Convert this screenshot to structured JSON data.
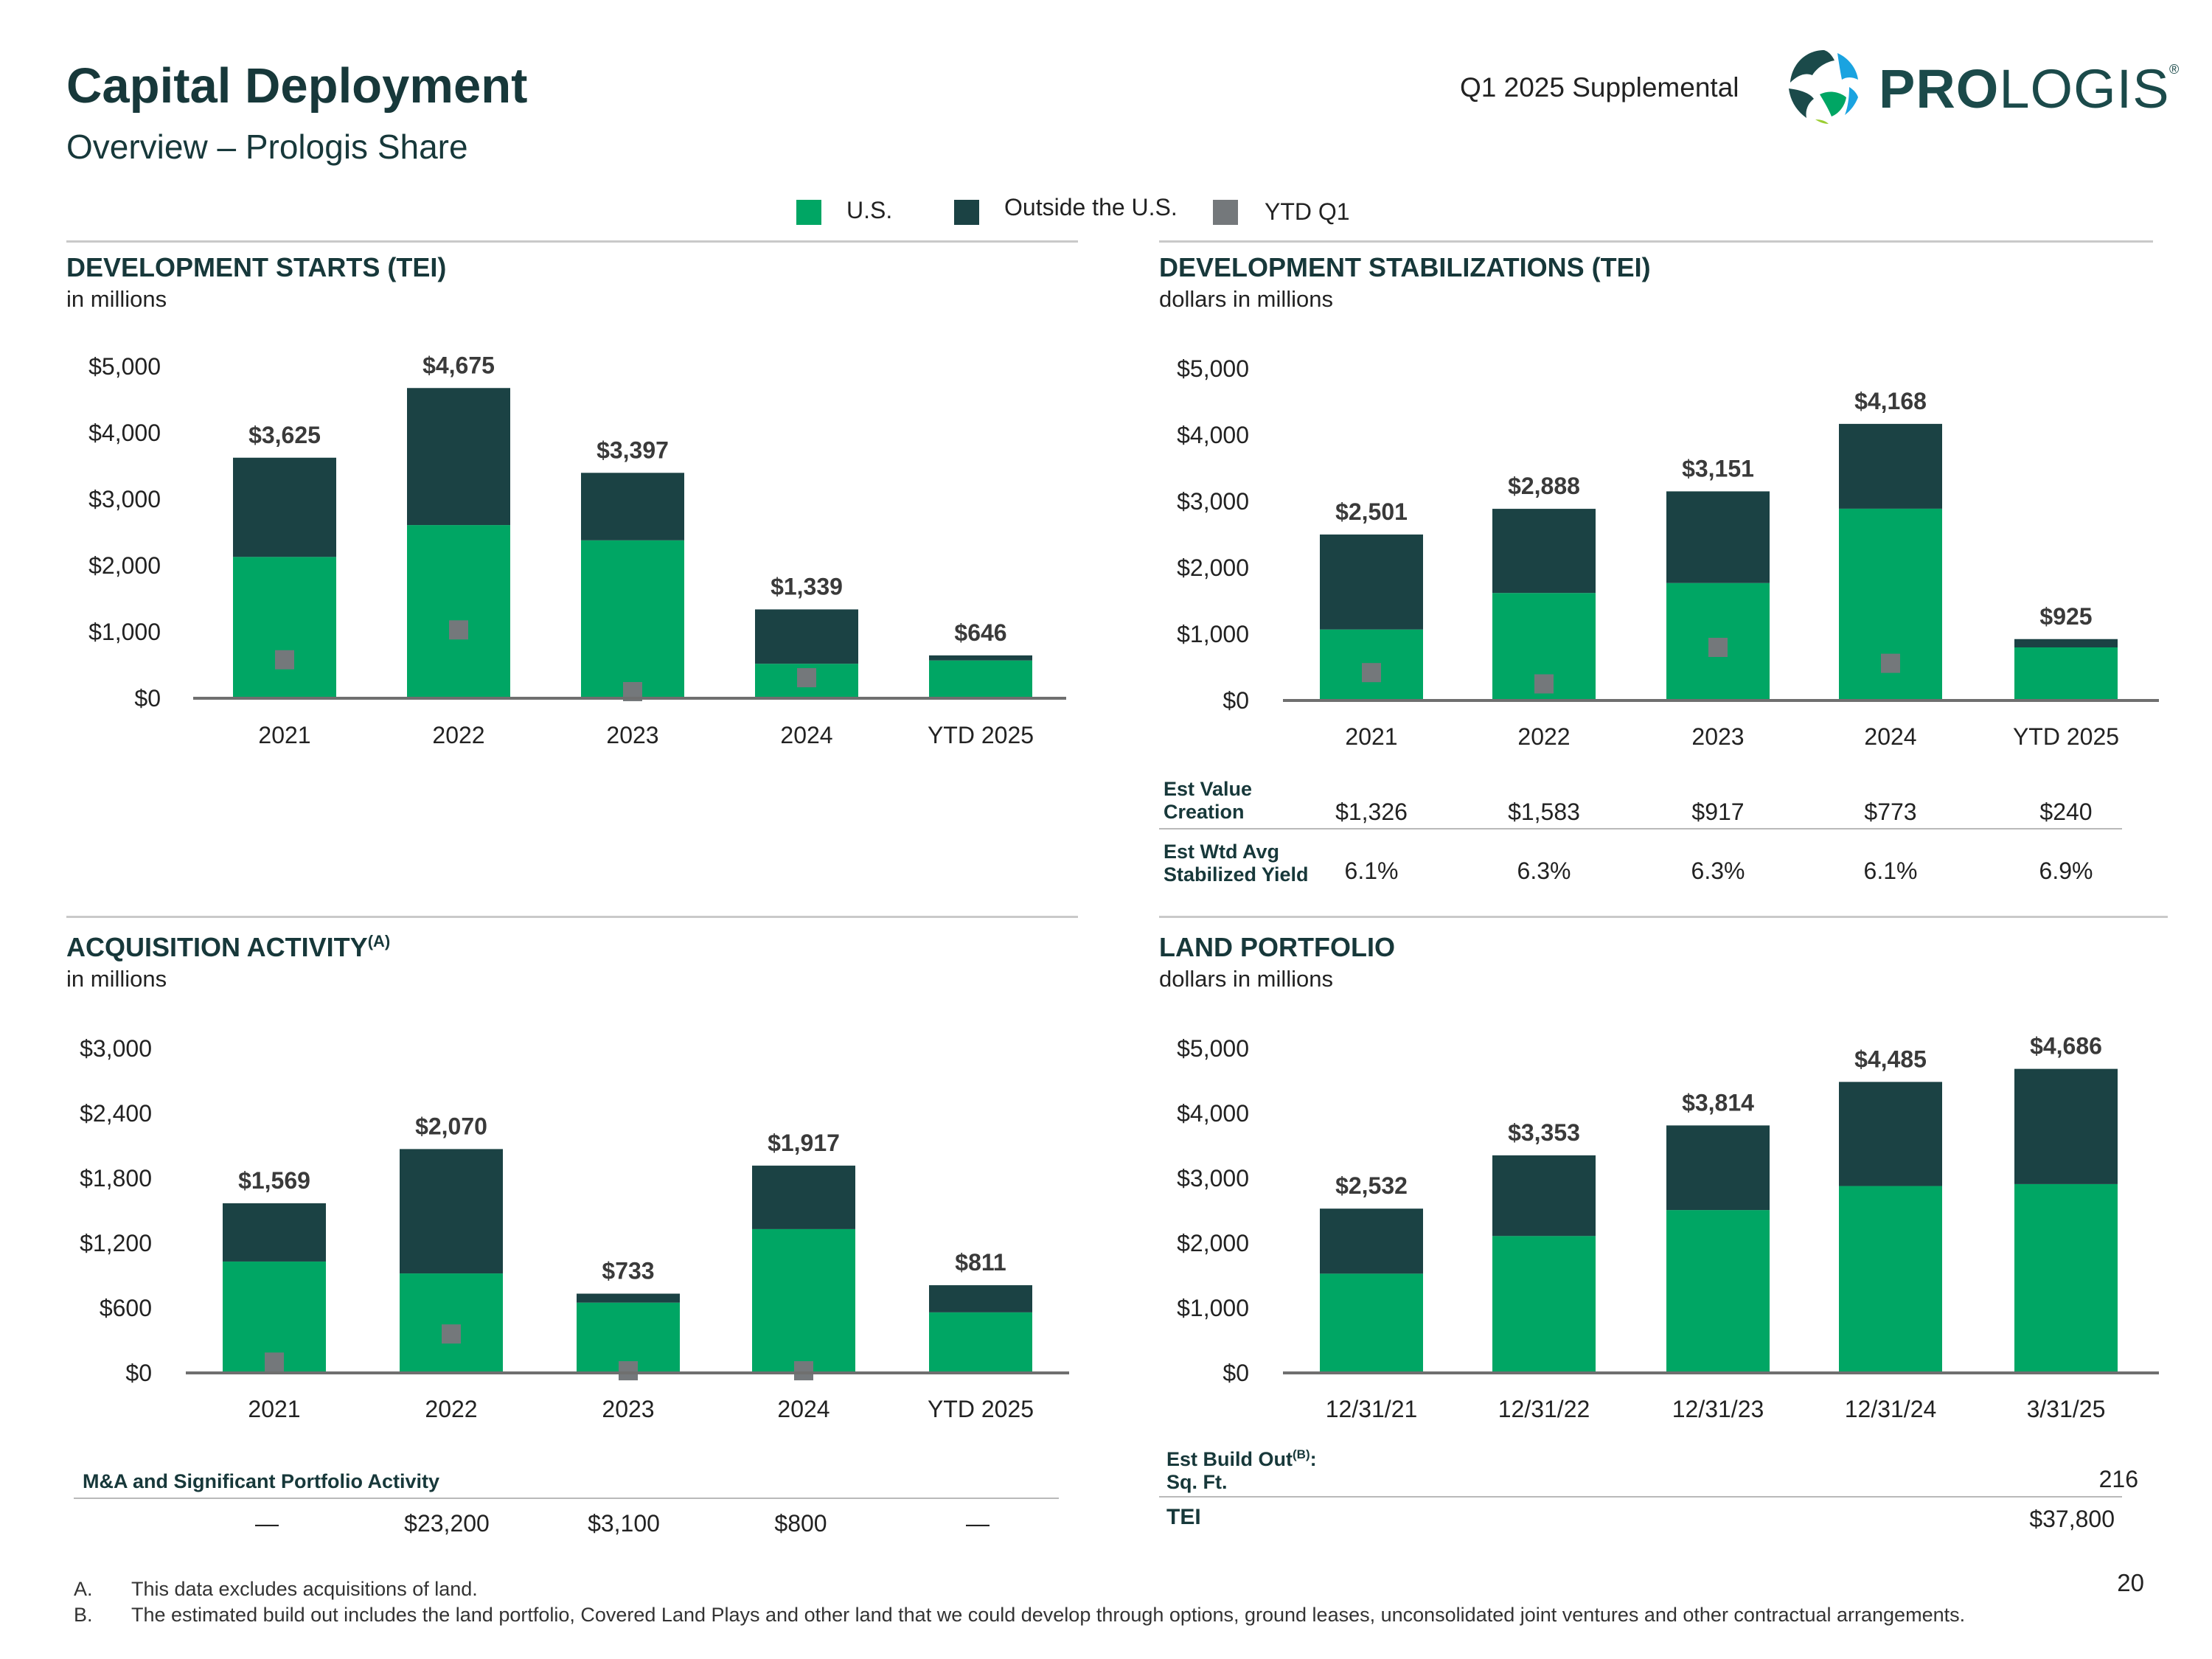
{
  "header": {
    "title": "Capital Deployment",
    "subtitle": "Overview – Prologis Share",
    "supplemental": "Q1 2025 Supplemental",
    "logo_bold": "PRO",
    "logo_regular": "LOGIS",
    "logo_mark": "®"
  },
  "legend": {
    "us": "U.S.",
    "outside": "Outside the U.S.",
    "ytd": "YTD Q1"
  },
  "colors": {
    "us": "#00a664",
    "outside": "#1b4244",
    "ytd": "#74787b",
    "axis": "#6f6f6f"
  },
  "sections": {
    "dev_starts": {
      "title": "DEVELOPMENT STARTS (TEI)",
      "subtitle": "in millions"
    },
    "dev_stab": {
      "title": "DEVELOPMENT STABILIZATIONS (TEI)",
      "subtitle": "dollars in millions"
    },
    "acq": {
      "title": "ACQUISITION ACTIVITY",
      "title_sup": "(A)",
      "subtitle": "in millions"
    },
    "land": {
      "title": "LAND PORTFOLIO",
      "subtitle": "dollars in millions"
    }
  },
  "chart_data": [
    {
      "id": "dev_starts",
      "type": "bar",
      "stacked": true,
      "categories": [
        "2021",
        "2022",
        "2023",
        "2024",
        "YTD 2025"
      ],
      "series": [
        {
          "name": "U.S.",
          "values": [
            2130,
            2610,
            2380,
            520,
            570
          ]
        },
        {
          "name": "Outside the U.S.",
          "values": [
            1495,
            2065,
            1017,
            819,
            76
          ]
        }
      ],
      "markers": {
        "name": "YTD Q1",
        "values": [
          580,
          1030,
          100,
          310,
          null
        ]
      },
      "totals": [
        "$3,625",
        "$4,675",
        "$3,397",
        "$1,339",
        "$646"
      ],
      "yticks": [
        0,
        1000,
        2000,
        3000,
        4000,
        5000
      ],
      "ytick_labels": [
        "$0",
        "$1,000",
        "$2,000",
        "$3,000",
        "$4,000",
        "$5,000"
      ],
      "ylim": [
        0,
        5000
      ]
    },
    {
      "id": "dev_stab",
      "type": "bar",
      "stacked": true,
      "categories": [
        "2021",
        "2022",
        "2023",
        "2024",
        "YTD 2025"
      ],
      "series": [
        {
          "name": "U.S.",
          "values": [
            1070,
            1620,
            1770,
            2890,
            800
          ]
        },
        {
          "name": "Outside the U.S.",
          "values": [
            1431,
            1268,
            1381,
            1278,
            125
          ]
        }
      ],
      "markers": {
        "name": "YTD Q1",
        "values": [
          420,
          250,
          800,
          560,
          null
        ]
      },
      "totals": [
        "$2,501",
        "$2,888",
        "$3,151",
        "$4,168",
        "$925"
      ],
      "yticks": [
        0,
        1000,
        2000,
        3000,
        4000,
        5000
      ],
      "ytick_labels": [
        "$0",
        "$1,000",
        "$2,000",
        "$3,000",
        "$4,000",
        "$5,000"
      ],
      "ylim": [
        0,
        5000
      ]
    },
    {
      "id": "acq",
      "type": "bar",
      "stacked": true,
      "categories": [
        "2021",
        "2022",
        "2023",
        "2024",
        "YTD 2025"
      ],
      "series": [
        {
          "name": "U.S.",
          "values": [
            1030,
            920,
            650,
            1330,
            560
          ]
        },
        {
          "name": "Outside the U.S.",
          "values": [
            539,
            1150,
            83,
            587,
            251
          ]
        }
      ],
      "markers": {
        "name": "YTD Q1",
        "values": [
          100,
          360,
          20,
          20,
          null
        ]
      },
      "totals": [
        "$1,569",
        "$2,070",
        "$733",
        "$1,917",
        "$811"
      ],
      "yticks": [
        0,
        600,
        1200,
        1800,
        2400,
        3000
      ],
      "ytick_labels": [
        "$0",
        "$600",
        "$1,200",
        "$1,800",
        "$2,400",
        "$3,000"
      ],
      "ylim": [
        0,
        3000
      ]
    },
    {
      "id": "land",
      "type": "bar",
      "stacked": true,
      "categories": [
        "12/31/21",
        "12/31/22",
        "12/31/23",
        "12/31/24",
        "3/31/25"
      ],
      "series": [
        {
          "name": "U.S.",
          "values": [
            1530,
            2110,
            2510,
            2880,
            2910
          ]
        },
        {
          "name": "Outside the U.S.",
          "values": [
            1002,
            1243,
            1304,
            1605,
            1776
          ]
        }
      ],
      "totals": [
        "$2,532",
        "$3,353",
        "$3,814",
        "$4,485",
        "$4,686"
      ],
      "yticks": [
        0,
        1000,
        2000,
        3000,
        4000,
        5000
      ],
      "ytick_labels": [
        "$0",
        "$1,000",
        "$2,000",
        "$3,000",
        "$4,000",
        "$5,000"
      ],
      "ylim": [
        0,
        5000
      ]
    }
  ],
  "stab_table": {
    "row1_label": "Est Value Creation",
    "row1_values": [
      "$1,326",
      "$1,583",
      "$917",
      "$773",
      "$240"
    ],
    "row2_label": "Est Wtd Avg Stabilized Yield",
    "row2_values": [
      "6.1%",
      "6.3%",
      "6.3%",
      "6.1%",
      "6.9%"
    ]
  },
  "ma_table": {
    "label": "M&A and Significant Portfolio Activity",
    "values": [
      "—",
      "$23,200",
      "$3,100",
      "$800",
      "—"
    ]
  },
  "land_table": {
    "label_line1": "Est Build Out",
    "label_sup": "(B)",
    "label_colon": ":",
    "label_line2": "Sq. Ft.",
    "sqft_value": "216",
    "tei_label": "TEI",
    "tei_value": "$37,800"
  },
  "footnotes": [
    {
      "letter": "A.",
      "text": "This data excludes acquisitions of land."
    },
    {
      "letter": "B.",
      "text": "The estimated build out includes the land portfolio, Covered Land Plays and other land that we could develop through options, ground leases, unconsolidated joint ventures and other contractual arrangements."
    }
  ],
  "page_number": "20"
}
